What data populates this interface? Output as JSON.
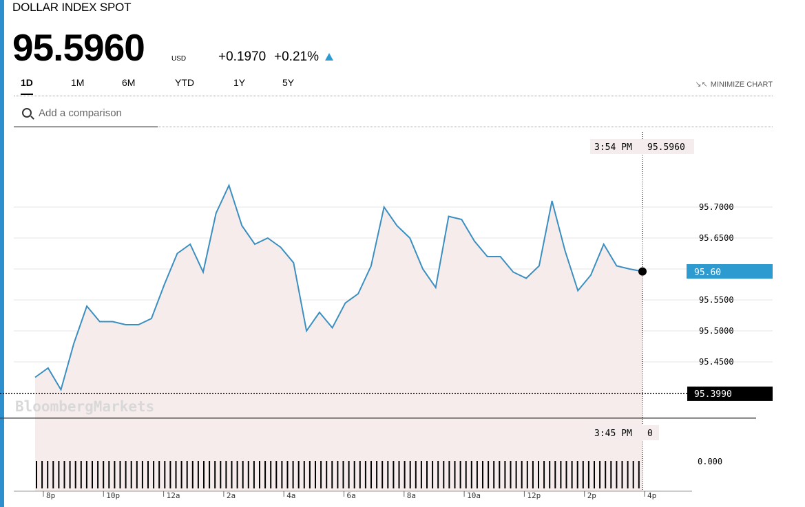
{
  "header": {
    "title": "DOLLAR INDEX SPOT",
    "price": "95.5960",
    "currency": "USD",
    "change": "+0.1970",
    "change_pct": "+0.21%",
    "direction": "up"
  },
  "tabs": [
    {
      "label": "1D",
      "active": true
    },
    {
      "label": "1M",
      "active": false
    },
    {
      "label": "6M",
      "active": false
    },
    {
      "label": "YTD",
      "active": false
    },
    {
      "label": "1Y",
      "active": false
    },
    {
      "label": "5Y",
      "active": false
    }
  ],
  "minimize_label": "MINIMIZE CHART",
  "search": {
    "placeholder": "Add a comparison"
  },
  "chart_data": {
    "type": "line",
    "x": [
      "7:45p",
      "8:15p",
      "8:30p",
      "9:00p",
      "9:30p",
      "10:00p",
      "10:30p",
      "11:00p",
      "11:30p",
      "12:00a",
      "12:30a",
      "1:00a",
      "1:30a",
      "2:00a",
      "2:15a",
      "2:30a",
      "3:00a",
      "3:30a",
      "4:00a",
      "4:30a",
      "5:00a",
      "5:30a",
      "5:45a",
      "6:15a",
      "6:30a",
      "7:00a",
      "7:30a",
      "8:00a",
      "8:15a",
      "8:45a",
      "9:00a",
      "9:20a",
      "9:30a",
      "9:40a",
      "10:00a",
      "10:30a",
      "11:00a",
      "11:30a",
      "12:00p",
      "12:30p",
      "1:00p",
      "1:15p",
      "1:30p",
      "2:00p",
      "2:30p",
      "3:00p",
      "3:30p",
      "3:54p"
    ],
    "values": [
      95.425,
      95.44,
      95.405,
      95.48,
      95.54,
      95.515,
      95.515,
      95.51,
      95.51,
      95.52,
      95.575,
      95.625,
      95.64,
      95.595,
      95.69,
      95.735,
      95.67,
      95.64,
      95.65,
      95.635,
      95.61,
      95.5,
      95.53,
      95.505,
      95.545,
      95.56,
      95.605,
      95.7,
      95.67,
      95.65,
      95.6,
      95.57,
      95.685,
      95.68,
      95.645,
      95.62,
      95.62,
      95.595,
      95.585,
      95.605,
      95.71,
      95.63,
      95.565,
      95.59,
      95.64,
      95.605,
      95.6,
      95.596
    ],
    "series_name": "DOLLAR INDEX SPOT",
    "last": {
      "time": "3:54 PM",
      "value": "95.5960",
      "axis_label": "95.60"
    },
    "prev_close": {
      "value": "95.3990"
    },
    "ylim": [
      95.395,
      95.745
    ],
    "y_ticks": [
      "95.7000",
      "95.6500",
      "95.5500",
      "95.5000",
      "95.4500"
    ],
    "x_ticks": [
      "8p",
      "10p",
      "12a",
      "2a",
      "4a",
      "6a",
      "8a",
      "10a",
      "12p",
      "2p",
      "4p"
    ],
    "volume": {
      "time": "3:45 PM",
      "value": "0",
      "axis_label": "0.000"
    },
    "watermark": "BloombergMarkets",
    "colors": {
      "line": "#3a8fc0",
      "area": "#f7ecec",
      "last_badge": "#2e9bd0",
      "prev_badge": "#000000"
    }
  }
}
